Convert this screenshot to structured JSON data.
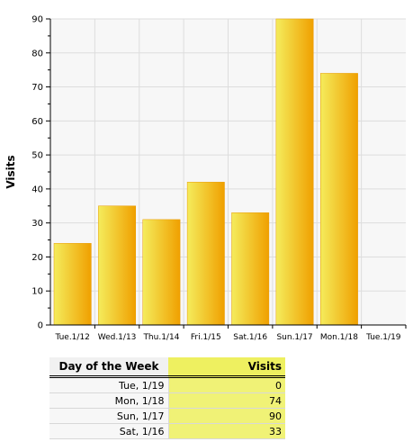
{
  "chart_data": {
    "type": "bar",
    "categories": [
      "Tue.1/12",
      "Wed.1/13",
      "Thu.1/14",
      "Fri.1/15",
      "Sat.1/16",
      "Sun.1/17",
      "Mon.1/18",
      "Tue.1/19"
    ],
    "values": [
      24,
      35,
      31,
      42,
      33,
      90,
      74,
      0
    ],
    "title": "",
    "xlabel": "",
    "ylabel": "Visits",
    "ylim": [
      0,
      90
    ],
    "yticks": [
      0,
      10,
      20,
      30,
      40,
      50,
      60,
      70,
      80,
      90
    ],
    "grid": true,
    "legend": "none",
    "colors": {
      "bar_light": "#f4ec5c",
      "bar_dark": "#f0a000",
      "plot_bg": "#f7f7f7",
      "grid": "#dddddd"
    }
  },
  "table": {
    "headers": {
      "day": "Day of the Week",
      "visits": "Visits"
    },
    "rows": [
      {
        "day": "Tue, 1/19",
        "visits": "0"
      },
      {
        "day": "Mon, 1/18",
        "visits": "74"
      },
      {
        "day": "Sun, 1/17",
        "visits": "90"
      },
      {
        "day": "Sat, 1/16",
        "visits": "33"
      }
    ]
  }
}
